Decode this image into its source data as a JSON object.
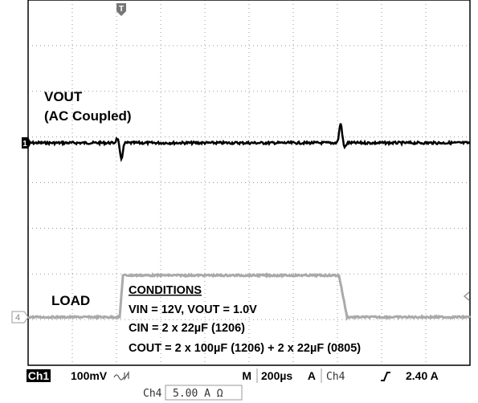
{
  "screen": {
    "markers": {
      "trigger": "T",
      "ch1": "1",
      "ch4": "4"
    },
    "labels": {
      "vout": "VOUT",
      "vout_note": "(AC Coupled)",
      "load": "LOAD"
    },
    "conditions": {
      "title": "CONDITIONS",
      "lines": [
        "VIN = 12V, VOUT = 1.0V",
        "CIN = 2 x 22µF (1206)",
        "COUT = 2 x 100µF (1206) + 2 x 22µF (0805)"
      ]
    },
    "status": {
      "ch1": "Ch1",
      "ch1_scale": "100mV",
      "timebase_label": "M",
      "timebase": "200µs",
      "trigger_label": "A",
      "trigger_source": "Ch4",
      "trigger_level": "2.40 A",
      "ch4": "Ch4",
      "ch4_scale": "5.00 A Ω"
    }
  }
}
